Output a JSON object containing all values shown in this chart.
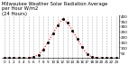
{
  "title": "Milwaukee Weather Solar Radiation Average\nper Hour W/m2\n(24 Hours)",
  "hours": [
    0,
    1,
    2,
    3,
    4,
    5,
    6,
    7,
    8,
    9,
    10,
    11,
    12,
    13,
    14,
    15,
    16,
    17,
    18,
    19,
    20,
    21,
    22,
    23
  ],
  "values": [
    0,
    0,
    0,
    0,
    0,
    2,
    8,
    30,
    80,
    150,
    230,
    310,
    370,
    330,
    260,
    180,
    100,
    38,
    8,
    1,
    0,
    0,
    0,
    0
  ],
  "line_color": "red",
  "marker_color": "black",
  "bg_color": "#ffffff",
  "grid_color": "#aaaaaa",
  "ylim": [
    0,
    400
  ],
  "yticks": [
    50,
    100,
    150,
    200,
    250,
    300,
    350,
    400
  ],
  "title_fontsize": 3.8,
  "axis_fontsize": 3.0
}
